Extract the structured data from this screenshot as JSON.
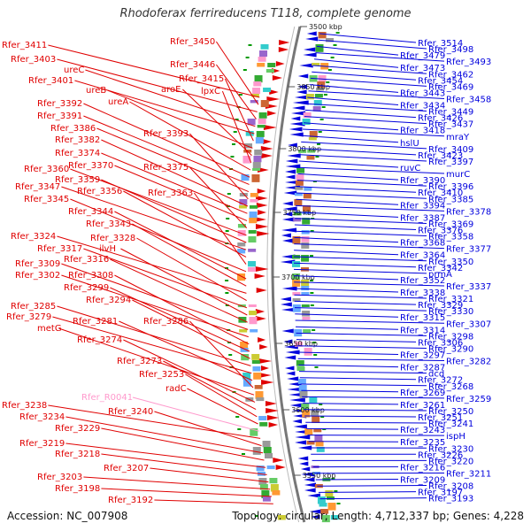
{
  "title": "Rhodoferax ferrireducens T118, complete genome",
  "accession": "Accession: NC_007908",
  "summary": "Topology: circular; Length: 4,712,337 bp; Genes: 4,228",
  "colors": {
    "forward": "#e00000",
    "reverse": "#0000dd",
    "rna": "#ff99cc",
    "axis": "#777777",
    "ticklabel": "#222222"
  },
  "scale_ticks": [
    "3500 kbp",
    "3550 kbp",
    "3600 kbp",
    "3650 kbp",
    "3700 kbp",
    "3750 kbp",
    "3800 kbp",
    "3850 kbp"
  ],
  "left_labels": [
    {
      "t": "Rfer_3411",
      "c": "f"
    },
    {
      "t": "Rfer_3450",
      "c": "f"
    },
    {
      "t": "Rfer_3403",
      "c": "f"
    },
    {
      "t": "Rfer_3446",
      "c": "f"
    },
    {
      "t": "ureC",
      "c": "f"
    },
    {
      "t": "Rfer_3401",
      "c": "f"
    },
    {
      "t": "Rfer_3415",
      "c": "f"
    },
    {
      "t": "ureB",
      "c": "f"
    },
    {
      "t": "aroE",
      "c": "f"
    },
    {
      "t": "lpxC",
      "c": "f"
    },
    {
      "t": "ureA",
      "c": "f"
    },
    {
      "t": "Rfer_3392",
      "c": "f"
    },
    {
      "t": "Rfer_3391",
      "c": "f"
    },
    {
      "t": "Rfer_3386",
      "c": "f"
    },
    {
      "t": "Rfer_3393",
      "c": "f"
    },
    {
      "t": "Rfer_3382",
      "c": "f"
    },
    {
      "t": "Rfer_3374",
      "c": "f"
    },
    {
      "t": "Rfer_3370",
      "c": "f"
    },
    {
      "t": "Rfer_3375",
      "c": "f"
    },
    {
      "t": "Rfer_3360",
      "c": "f"
    },
    {
      "t": "Rfer_3359",
      "c": "f"
    },
    {
      "t": "Rfer_3347",
      "c": "f"
    },
    {
      "t": "Rfer_3356",
      "c": "f"
    },
    {
      "t": "Rfer_3363",
      "c": "f"
    },
    {
      "t": "Rfer_3345",
      "c": "f"
    },
    {
      "t": "Rfer_3344",
      "c": "f"
    },
    {
      "t": "Rfer_3343",
      "c": "f"
    },
    {
      "t": "Rfer_3324",
      "c": "f"
    },
    {
      "t": "Rfer_3328",
      "c": "f"
    },
    {
      "t": "Rfer_3317",
      "c": "f"
    },
    {
      "t": "ilvH",
      "c": "f"
    },
    {
      "t": "Rfer_3316",
      "c": "f"
    },
    {
      "t": "Rfer_3309",
      "c": "f"
    },
    {
      "t": "Rfer_3302",
      "c": "f"
    },
    {
      "t": "Rfer_3308",
      "c": "f"
    },
    {
      "t": "Rfer_3299",
      "c": "f"
    },
    {
      "t": "Rfer_3294",
      "c": "f"
    },
    {
      "t": "Rfer_3285",
      "c": "f"
    },
    {
      "t": "Rfer_3279",
      "c": "f"
    },
    {
      "t": "Rfer_3281",
      "c": "f"
    },
    {
      "t": "Rfer_3286",
      "c": "f"
    },
    {
      "t": "metG",
      "c": "f"
    },
    {
      "t": "Rfer_3274",
      "c": "f"
    },
    {
      "t": "Rfer_3273",
      "c": "f"
    },
    {
      "t": "Rfer_3253",
      "c": "f"
    },
    {
      "t": "radC",
      "c": "f"
    },
    {
      "t": "Rfer_R0041",
      "c": "rna"
    },
    {
      "t": "Rfer_3238",
      "c": "f"
    },
    {
      "t": "Rfer_3240",
      "c": "f"
    },
    {
      "t": "Rfer_3234",
      "c": "f"
    },
    {
      "t": "Rfer_3229",
      "c": "f"
    },
    {
      "t": "Rfer_3219",
      "c": "f"
    },
    {
      "t": "Rfer_3218",
      "c": "f"
    },
    {
      "t": "Rfer_3207",
      "c": "f"
    },
    {
      "t": "Rfer_3203",
      "c": "f"
    },
    {
      "t": "Rfer_3198",
      "c": "f"
    },
    {
      "t": "Rfer_3192",
      "c": "f"
    }
  ],
  "right_labels": [
    "Rfer_3514",
    "Rfer_3498",
    "Rfer_3479",
    "Rfer_3493",
    "Rfer_3473",
    "Rfer_3462",
    "Rfer_3454",
    "Rfer_3469",
    "Rfer_3443",
    "Rfer_3458",
    "Rfer_3434",
    "Rfer_3449",
    "Rfer_3426",
    "Rfer_3437",
    "Rfer_3418",
    "mraY",
    "hslU",
    "Rfer_3409",
    "Rfer_3423",
    "Rfer_3397",
    "ruvC",
    "murC",
    "Rfer_3390",
    "Rfer_3396",
    "Rfer_3410",
    "Rfer_3385",
    "Rfer_3394",
    "Rfer_3378",
    "Rfer_3387",
    "Rfer_3369",
    "Rfer_3376",
    "Rfer_3358",
    "Rfer_3368",
    "Rfer_3377",
    "Rfer_3364",
    "Rfer_3350",
    "Rfer_3342",
    "prmA",
    "Rfer_3352",
    "Rfer_3337",
    "Rfer_3338",
    "Rfer_3321",
    "Rfer_3329",
    "Rfer_3330",
    "Rfer_3315",
    "Rfer_3307",
    "Rfer_3314",
    "Rfer_3298",
    "Rfer_3306",
    "Rfer_3290",
    "Rfer_3297",
    "Rfer_3282",
    "Rfer_3287",
    "dcd",
    "Rfer_3272",
    "Rfer_3268",
    "Rfer_3269",
    "Rfer_3259",
    "Rfer_3261",
    "Rfer_3250",
    "Rfer_3251",
    "Rfer_3241",
    "Rfer_3243",
    "ispH",
    "Rfer_3235",
    "Rfer_3230",
    "Rfer_3226",
    "Rfer_3220",
    "Rfer_3216",
    "Rfer_3211",
    "Rfer_3209",
    "Rfer_3208",
    "Rfer_3197",
    "Rfer_3193"
  ]
}
